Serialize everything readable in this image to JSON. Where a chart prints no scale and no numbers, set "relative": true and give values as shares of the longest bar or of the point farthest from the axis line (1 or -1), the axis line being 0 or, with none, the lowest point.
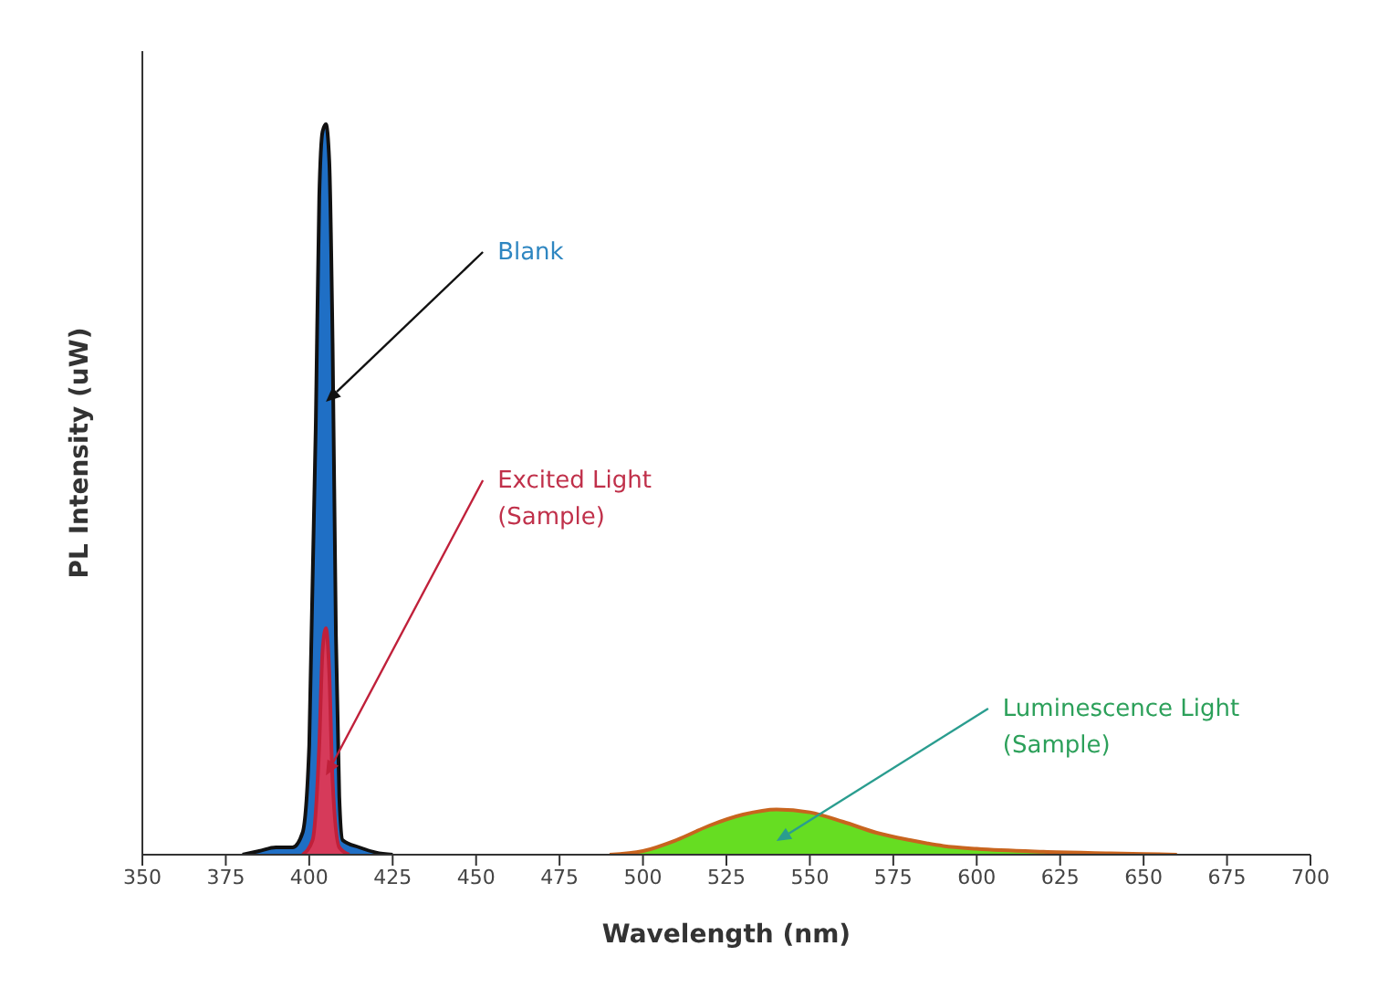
{
  "chart_data": {
    "type": "area",
    "relative": true,
    "xlabel": "Wavelength (nm)",
    "ylabel": "PL Intensity (uW)",
    "xlim": [
      350,
      700
    ],
    "xticks": [
      350,
      375,
      400,
      425,
      450,
      475,
      500,
      525,
      550,
      575,
      600,
      625,
      650,
      675,
      700
    ],
    "series": [
      {
        "name": "Blank",
        "color": "#1f6fc5",
        "x": [
          380,
          385,
          390,
          395,
          398,
          400,
          402,
          403,
          404,
          405,
          406,
          407,
          408,
          409,
          410,
          415,
          420,
          425
        ],
        "values": [
          0,
          0.005,
          0.01,
          0.01,
          0.03,
          0.15,
          0.6,
          0.9,
          0.99,
          1,
          0.95,
          0.7,
          0.3,
          0.08,
          0.02,
          0.01,
          0.003,
          0
        ]
      },
      {
        "name": "Excited Light\n(Sample)",
        "color": "#d63a5a",
        "x": [
          398,
          401,
          403,
          404,
          405,
          406,
          407,
          409,
          412
        ],
        "values": [
          0,
          0.02,
          0.15,
          0.28,
          0.31,
          0.25,
          0.1,
          0.01,
          0
        ]
      },
      {
        "name": "Luminescence Light\n(Sample)",
        "color": "#66dd22",
        "x": [
          490,
          500,
          510,
          520,
          530,
          540,
          550,
          560,
          570,
          580,
          590,
          600,
          620,
          640,
          660
        ],
        "values": [
          0,
          0.005,
          0.02,
          0.04,
          0.055,
          0.062,
          0.058,
          0.045,
          0.03,
          0.02,
          0.012,
          0.008,
          0.004,
          0.002,
          0
        ]
      }
    ]
  }
}
